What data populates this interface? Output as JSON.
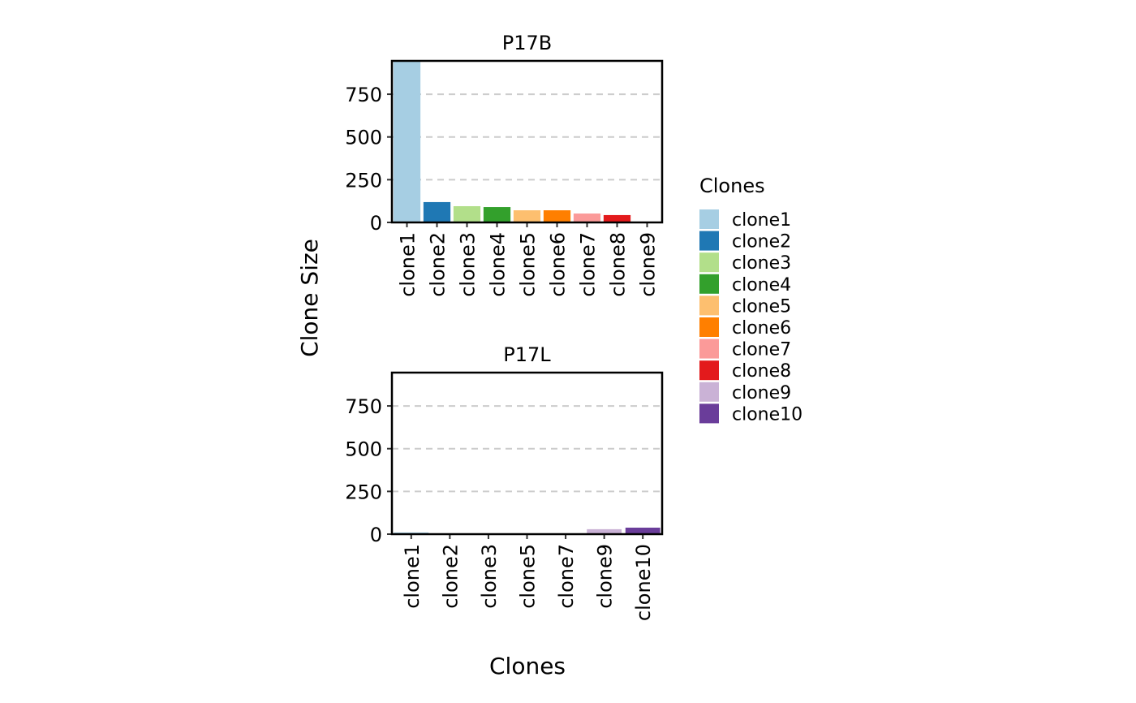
{
  "chart_data": [
    {
      "type": "bar",
      "title": "P17B",
      "categories": [
        "clone1",
        "clone2",
        "clone3",
        "clone4",
        "clone5",
        "clone6",
        "clone7",
        "clone8",
        "clone9"
      ],
      "values": [
        945,
        119,
        95,
        90,
        71,
        71,
        52,
        43,
        1
      ],
      "ylim": [
        0,
        945
      ],
      "yticks": [
        0,
        250,
        500,
        750
      ],
      "grid": "horizontal dashed"
    },
    {
      "type": "bar",
      "title": "P17L",
      "categories": [
        "clone1",
        "clone2",
        "clone3",
        "clone5",
        "clone7",
        "clone9",
        "clone10"
      ],
      "values": [
        10,
        1,
        1,
        1,
        1,
        29,
        38
      ],
      "ylim": [
        0,
        945
      ],
      "yticks": [
        0,
        250,
        500,
        750
      ],
      "grid": "horizontal dashed"
    }
  ],
  "ylabel": "Clone Size",
  "xlabel": "Clones",
  "legend": {
    "title": "Clones",
    "placement": "right",
    "items": [
      "clone1",
      "clone2",
      "clone3",
      "clone4",
      "clone5",
      "clone6",
      "clone7",
      "clone8",
      "clone9",
      "clone10"
    ],
    "colors": {
      "clone1": "#A6CEE3",
      "clone2": "#1F78B4",
      "clone3": "#B2DF8A",
      "clone4": "#33A02C",
      "clone5": "#FDBF6F",
      "clone6": "#FF7F00",
      "clone7": "#FB9A99",
      "clone8": "#E31A1C",
      "clone9": "#CAB2D6",
      "clone10": "#6A3D9A"
    }
  }
}
